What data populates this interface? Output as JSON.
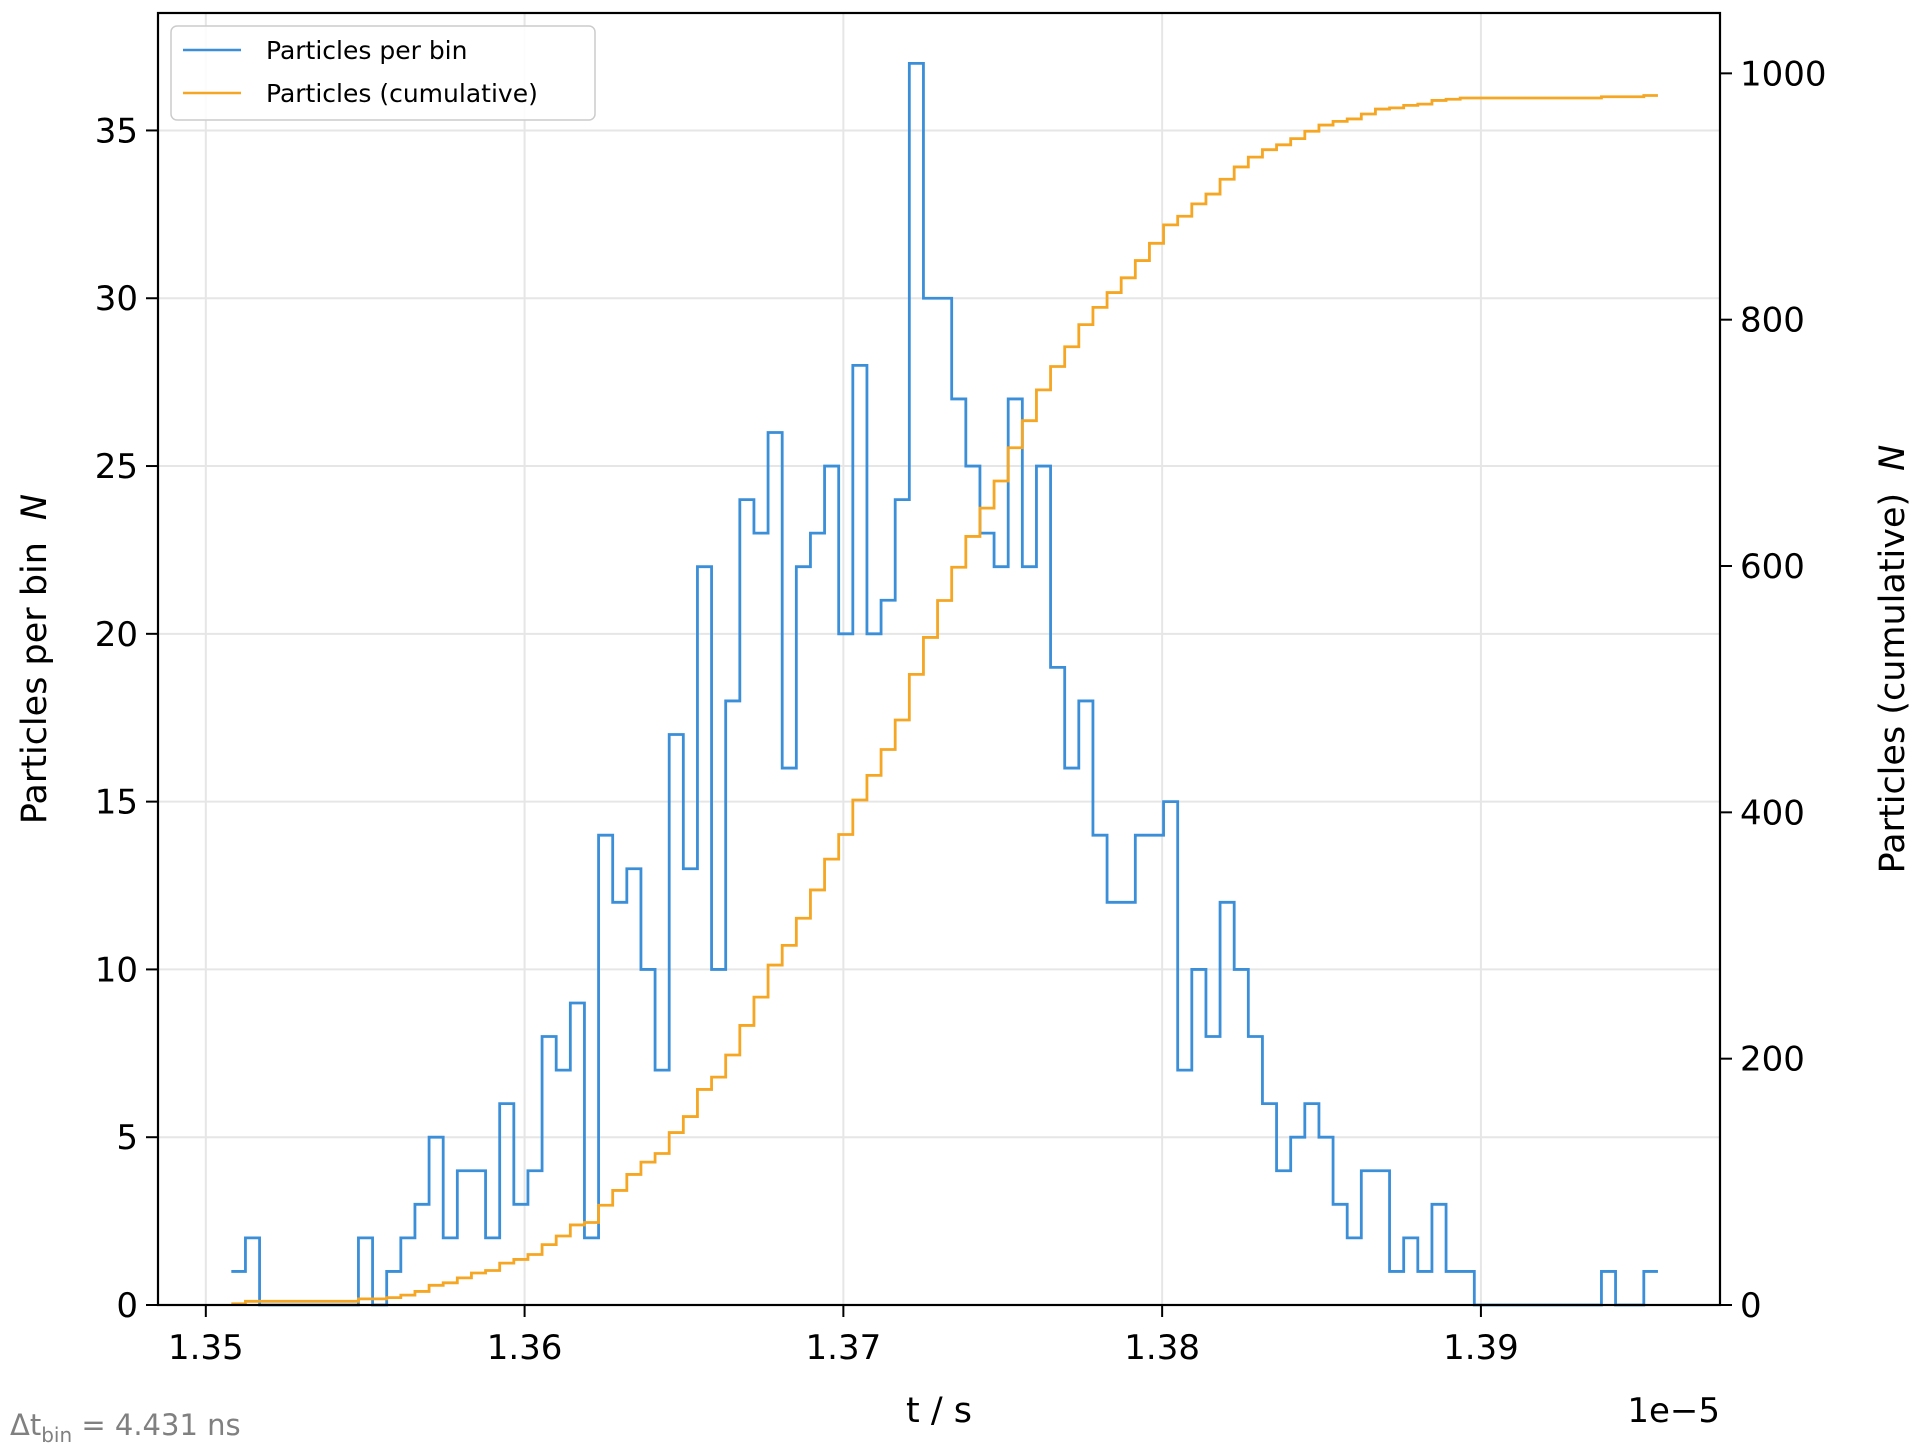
{
  "chart_data": {
    "type": "line",
    "drawstyle": "steps",
    "x_range": [
      1.3485,
      1.3975
    ],
    "x_ticks": [
      1.35,
      1.36,
      1.37,
      1.38,
      1.39
    ],
    "x_tick_labels": [
      "1.35",
      "1.36",
      "1.37",
      "1.38",
      "1.39"
    ],
    "x_offset_label": "1e−5",
    "xlabel": "t / s",
    "y_left": {
      "label": "Particles per bin",
      "unit": "N",
      "range": [
        0,
        38.5
      ],
      "ticks": [
        0,
        5,
        10,
        15,
        20,
        25,
        30,
        35
      ],
      "tick_labels": [
        "0",
        "5",
        "10",
        "15",
        "20",
        "25",
        "30",
        "35"
      ]
    },
    "y_right": {
      "label": "Particles (cumulative)",
      "unit": "N",
      "range": [
        0,
        1049
      ],
      "ticks": [
        0,
        200,
        400,
        600,
        800,
        1000
      ],
      "tick_labels": [
        "0",
        "200",
        "400",
        "600",
        "800",
        "1000"
      ]
    },
    "grid": true,
    "legend_position": "top-left",
    "bin_width_note": {
      "prefix": "Δt",
      "sub": "bin",
      "suffix": " = 4.431 ns"
    },
    "bins": {
      "x_start": 1.3508,
      "bin_width": 0.0004431,
      "counts": [
        1,
        2,
        0,
        0,
        0,
        0,
        0,
        0,
        0,
        2,
        0,
        1,
        2,
        3,
        5,
        2,
        4,
        4,
        2,
        6,
        3,
        4,
        8,
        7,
        9,
        2,
        14,
        12,
        13,
        10,
        7,
        17,
        13,
        22,
        10,
        18,
        24,
        23,
        26,
        16,
        22,
        23,
        25,
        20,
        28,
        20,
        21,
        24,
        37,
        30,
        30,
        27,
        25,
        23,
        22,
        27,
        22,
        25,
        19,
        16,
        18,
        14,
        12,
        12,
        14,
        14,
        15,
        7,
        10,
        8,
        12,
        10,
        8,
        6,
        4,
        5,
        6,
        5,
        3,
        2,
        4,
        4,
        1,
        2,
        1,
        3,
        1,
        1,
        0,
        0,
        0,
        0,
        0,
        0,
        0,
        0,
        0,
        1,
        0,
        0,
        1
      ]
    },
    "series": [
      {
        "name": "Particles per bin",
        "color": "#3b8ed8",
        "axis": "left",
        "values_from": "bins.counts"
      },
      {
        "name": "Particles (cumulative)",
        "color": "#f5a623",
        "axis": "right",
        "values_from": "cumulative sum of bins.counts"
      }
    ]
  }
}
